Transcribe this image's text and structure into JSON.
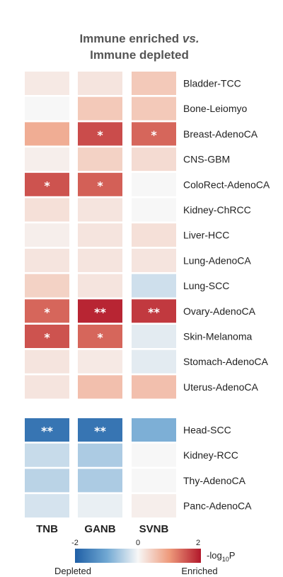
{
  "chart_data": {
    "type": "heatmap",
    "title_line1": "Immune enriched vs.",
    "title_line2": "Immune depleted",
    "columns": [
      "TNB",
      "GANB",
      "SVNB"
    ],
    "group1_rows": [
      {
        "label": "Bladder-TCC",
        "values": [
          0.15,
          0.2,
          0.5
        ],
        "marks": [
          "",
          "",
          ""
        ]
      },
      {
        "label": "Bone-Leiomyo",
        "values": [
          0.0,
          0.5,
          0.5
        ],
        "marks": [
          "",
          "",
          ""
        ]
      },
      {
        "label": "Breast-AdenoCA",
        "values": [
          0.8,
          1.6,
          1.4
        ],
        "marks": [
          "",
          "*",
          "*"
        ]
      },
      {
        "label": "CNS-GBM",
        "values": [
          0.1,
          0.4,
          0.3
        ],
        "marks": [
          "",
          "",
          ""
        ]
      },
      {
        "label": "ColoRect-AdenoCA",
        "values": [
          1.55,
          1.45,
          0.0
        ],
        "marks": [
          "*",
          "*",
          ""
        ]
      },
      {
        "label": "Kidney-ChRCC",
        "values": [
          0.25,
          0.2,
          0.0
        ],
        "marks": [
          "",
          "",
          ""
        ]
      },
      {
        "label": "Liver-HCC",
        "values": [
          0.1,
          0.2,
          0.25
        ],
        "marks": [
          "",
          "",
          ""
        ]
      },
      {
        "label": "Lung-AdenoCA",
        "values": [
          0.2,
          0.2,
          0.2
        ],
        "marks": [
          "",
          "",
          ""
        ]
      },
      {
        "label": "Lung-SCC",
        "values": [
          0.4,
          0.2,
          -0.3
        ],
        "marks": [
          "",
          "",
          ""
        ]
      },
      {
        "label": "Ovary-AdenoCA",
        "values": [
          1.4,
          1.9,
          1.75
        ],
        "marks": [
          "*",
          "**",
          "**"
        ]
      },
      {
        "label": "Skin-Melanoma",
        "values": [
          1.55,
          1.4,
          -0.15
        ],
        "marks": [
          "*",
          "*",
          ""
        ]
      },
      {
        "label": "Stomach-AdenoCA",
        "values": [
          0.2,
          0.15,
          -0.15
        ],
        "marks": [
          "",
          "",
          ""
        ]
      },
      {
        "label": "Uterus-AdenoCA",
        "values": [
          0.2,
          0.6,
          0.6
        ],
        "marks": [
          "",
          "",
          ""
        ]
      }
    ],
    "group2_rows": [
      {
        "label": "Head-SCC",
        "values": [
          -1.7,
          -1.7,
          -0.9
        ],
        "marks": [
          "**",
          "**",
          ""
        ]
      },
      {
        "label": "Kidney-RCC",
        "values": [
          -0.35,
          -0.55,
          0.0
        ],
        "marks": [
          "",
          "",
          ""
        ]
      },
      {
        "label": "Thy-AdenoCA",
        "values": [
          -0.45,
          -0.55,
          0.0
        ],
        "marks": [
          "",
          "",
          ""
        ]
      },
      {
        "label": "Panc-AdenoCA",
        "values": [
          -0.25,
          -0.1,
          0.1
        ],
        "marks": [
          "",
          "",
          ""
        ]
      }
    ],
    "colorbar": {
      "min": -2,
      "max": 2,
      "ticks": [
        "-2",
        "0",
        "2"
      ],
      "label_main": "-log",
      "label_sub": "10",
      "label_end": "P",
      "left_label": "Depleted",
      "right_label": "Enriched",
      "colors": [
        "#1f5fa6",
        "#f7f7f7",
        "#b2182b"
      ]
    }
  }
}
